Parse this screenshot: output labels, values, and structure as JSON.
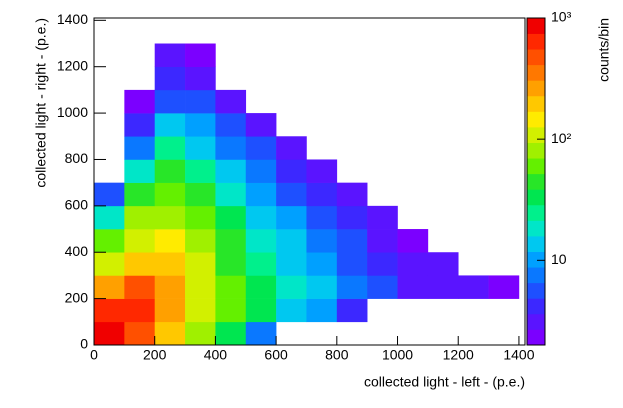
{
  "chart_data": {
    "type": "hist2d",
    "x_label": "collected light - left - (p.e.)",
    "y_label": "collected light - right - (p.e.)",
    "z_label": "counts/bin",
    "xlim": [
      0,
      1420
    ],
    "ylim": [
      0,
      1410
    ],
    "xticks": [
      0,
      200,
      400,
      600,
      800,
      1000,
      1200,
      1400
    ],
    "yticks": [
      0,
      200,
      400,
      600,
      800,
      1000,
      1200,
      1400
    ],
    "x_bins": [
      0,
      100,
      200,
      300,
      400,
      500,
      600,
      700,
      800,
      900,
      1000,
      1100,
      1200,
      1300,
      1400
    ],
    "y_bins": [
      0,
      100,
      200,
      300,
      400,
      500,
      600,
      700,
      800,
      900,
      1000,
      1100,
      1200,
      1300,
      1400
    ],
    "z": [
      [
        800,
        500,
        200,
        80,
        30,
        8,
        null,
        null,
        null,
        null,
        null,
        null,
        null,
        null
      ],
      [
        600,
        700,
        300,
        120,
        60,
        30,
        15,
        10,
        4,
        null,
        null,
        null,
        null,
        null
      ],
      [
        250,
        450,
        250,
        120,
        60,
        30,
        20,
        12,
        8,
        5,
        3,
        3,
        3,
        2
      ],
      [
        120,
        200,
        180,
        100,
        50,
        25,
        15,
        10,
        6,
        4,
        3,
        3,
        null,
        null
      ],
      [
        60,
        120,
        130,
        80,
        40,
        20,
        12,
        8,
        5,
        3,
        2,
        null,
        null,
        null
      ],
      [
        20,
        70,
        90,
        60,
        30,
        15,
        10,
        6,
        4,
        3,
        null,
        null,
        null,
        null
      ],
      [
        5,
        40,
        60,
        40,
        20,
        10,
        6,
        4,
        3,
        null,
        null,
        null,
        null,
        null
      ],
      [
        null,
        20,
        40,
        25,
        12,
        7,
        4,
        3,
        null,
        null,
        null,
        null,
        null,
        null
      ],
      [
        null,
        8,
        25,
        15,
        8,
        5,
        3,
        null,
        null,
        null,
        null,
        null,
        null,
        null
      ],
      [
        null,
        4,
        12,
        10,
        5,
        3,
        null,
        null,
        null,
        null,
        null,
        null,
        null,
        null
      ],
      [
        null,
        2,
        6,
        5,
        3,
        null,
        null,
        null,
        null,
        null,
        null,
        null,
        null,
        null
      ],
      [
        null,
        null,
        4,
        3,
        null,
        null,
        null,
        null,
        null,
        null,
        null,
        null,
        null,
        null
      ],
      [
        null,
        null,
        3,
        2,
        null,
        null,
        null,
        null,
        null,
        null,
        null,
        null,
        null,
        null
      ],
      [
        null,
        null,
        null,
        null,
        null,
        null,
        null,
        null,
        null,
        null,
        null,
        null,
        null,
        null
      ]
    ],
    "zlim": [
      2,
      1000
    ],
    "z_log": true,
    "zticks": [
      10,
      {
        "value": 100,
        "label": "10²"
      },
      {
        "value": 1000,
        "label": "10³"
      }
    ],
    "palette": [
      "#7b00ff",
      "#5a14ff",
      "#3c28ff",
      "#1e50ff",
      "#0a78ff",
      "#00a0ff",
      "#00c8f0",
      "#00e6c8",
      "#00f08c",
      "#00e650",
      "#28e628",
      "#64f000",
      "#a0f000",
      "#d2f000",
      "#ffeb00",
      "#ffc800",
      "#ffa000",
      "#ff7800",
      "#ff5000",
      "#ff2800",
      "#f00000"
    ]
  }
}
